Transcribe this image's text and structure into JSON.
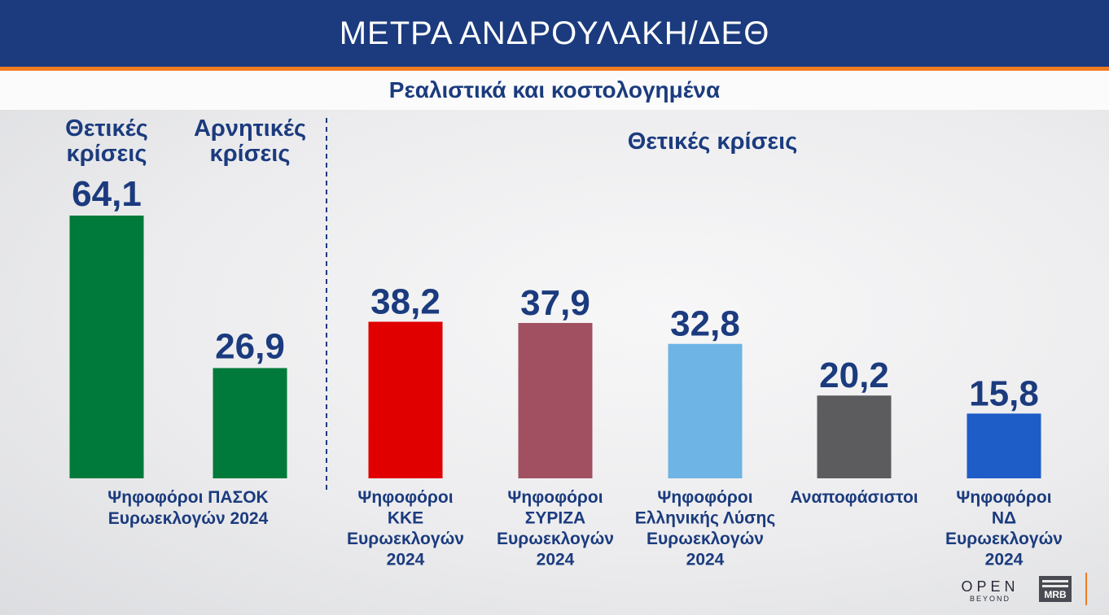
{
  "header": {
    "title": "ΜΕΤΡΑ ΑΝΔΡΟΥΛΑΚΗ/ΔΕΘ"
  },
  "subheader": {
    "title": "Ρεαλιστικά και κοστολογημένα"
  },
  "colors": {
    "header_bg": "#1b3b7e",
    "accent": "#f07c24",
    "text": "#1b3b7e"
  },
  "logos": {
    "open_main": "OPEN",
    "open_sub": "BEYOND",
    "mrb": "MRB"
  },
  "chart_data": {
    "type": "bar",
    "title": "ΜΕΤΡΑ ΑΝΔΡΟΥΛΑΚΗ/ΔΕΘ",
    "subtitle": "Ρεαλιστικά και κοστολογημένα",
    "ylim": [
      0,
      70
    ],
    "grid": false,
    "left_panel": {
      "group_label": [
        "Ψηφοφόροι ΠΑΣΟΚ",
        "Ευρωεκλογών 2024"
      ],
      "bars": [
        {
          "name": "Θετικές κρίσεις",
          "name_lines": [
            "Θετικές",
            "κρίσεις"
          ],
          "value": 64.1,
          "label": "64,1",
          "color": "#007a3a"
        },
        {
          "name": "Αρνητικές κρίσεις",
          "name_lines": [
            "Αρνητικές",
            "κρίσεις"
          ],
          "value": 26.9,
          "label": "26,9",
          "color": "#007a3a"
        }
      ]
    },
    "right_panel": {
      "section_title": "Θετικές κρίσεις",
      "bars": [
        {
          "category_lines": [
            "Ψηφοφόροι",
            "ΚΚΕ",
            "Ευρωεκλογών",
            "2024"
          ],
          "value": 38.2,
          "label": "38,2",
          "color": "#e00000"
        },
        {
          "category_lines": [
            "Ψηφοφόροι",
            "ΣΥΡΙΖΑ",
            "Ευρωεκλογών",
            "2024"
          ],
          "value": 37.9,
          "label": "37,9",
          "color": "#a05060"
        },
        {
          "category_lines": [
            "Ψηφοφόροι",
            "Ελληνικής Λύσης",
            "Ευρωεκλογών",
            "2024"
          ],
          "value": 32.8,
          "label": "32,8",
          "color": "#6eb4e4"
        },
        {
          "category_lines": [
            "Αναποφάσιστοι"
          ],
          "value": 20.2,
          "label": "20,2",
          "color": "#5c5c5e"
        },
        {
          "category_lines": [
            "Ψηφοφόροι",
            "ΝΔ",
            "Ευρωεκλογών",
            "2024"
          ],
          "value": 15.8,
          "label": "15,8",
          "color": "#1e5cc8"
        }
      ]
    }
  }
}
